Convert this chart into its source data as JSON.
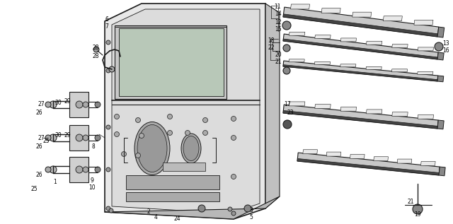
{
  "bg_color": "#ffffff",
  "fig_w": 6.4,
  "fig_h": 3.17,
  "dpi": 100,
  "line_color": "#1a1a1a",
  "fill_light": "#e8e8e8",
  "fill_mid": "#cccccc",
  "fill_dark": "#999999"
}
